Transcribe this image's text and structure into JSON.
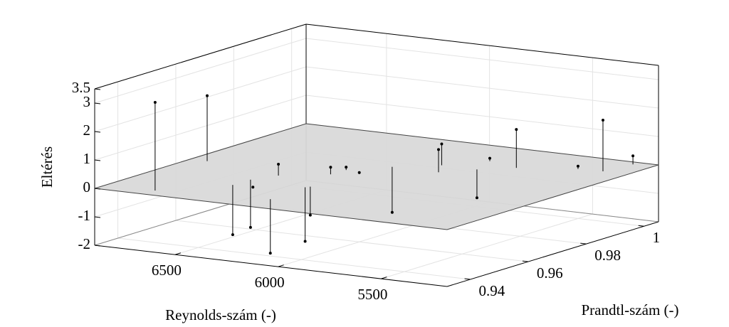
{
  "chart_data": {
    "type": "stem3d",
    "x_label": "Reynolds-szám (-)",
    "y_label": "Prandtl-szám (-)",
    "z_label": "Eltérés",
    "x": [
      6653,
      6808,
      6392,
      6445,
      6443,
      6333,
      6150,
      6164,
      6153,
      6223,
      6218,
      6126,
      6093,
      5868,
      5937,
      5766,
      5816,
      5645,
      5416,
      5302,
      5276
    ],
    "y": [
      0.936,
      0.965,
      0.96,
      0.948,
      0.954,
      0.947,
      0.94,
      0.953,
      0.954,
      0.966,
      0.971,
      0.969,
      0.978,
      0.978,
      0.984,
      0.984,
      0.992,
      0.989,
      0.994,
      0.9945,
      1.003
    ],
    "z": [
      3.1,
      2.3,
      0.4,
      -1.75,
      -1.68,
      0.05,
      -1.9,
      -1.9,
      -1.0,
      0.25,
      0.1,
      0.05,
      -1.6,
      0.8,
      0.75,
      -1.0,
      0.1,
      1.35,
      0.1,
      1.8,
      0.3
    ],
    "color": "#000000",
    "plane": {
      "z": 0,
      "color": "#d9d9d9"
    },
    "xlim": [
      5180,
      6890
    ],
    "ylim": [
      0.932,
      1.005
    ],
    "zlim": [
      -2,
      3.5
    ],
    "xticks": [
      5500,
      6000,
      6500
    ],
    "yticks": [
      0.94,
      0.96,
      0.98,
      1
    ],
    "zticks": [
      -2,
      -1,
      0,
      1,
      2,
      3,
      3.5
    ],
    "grid": true
  }
}
